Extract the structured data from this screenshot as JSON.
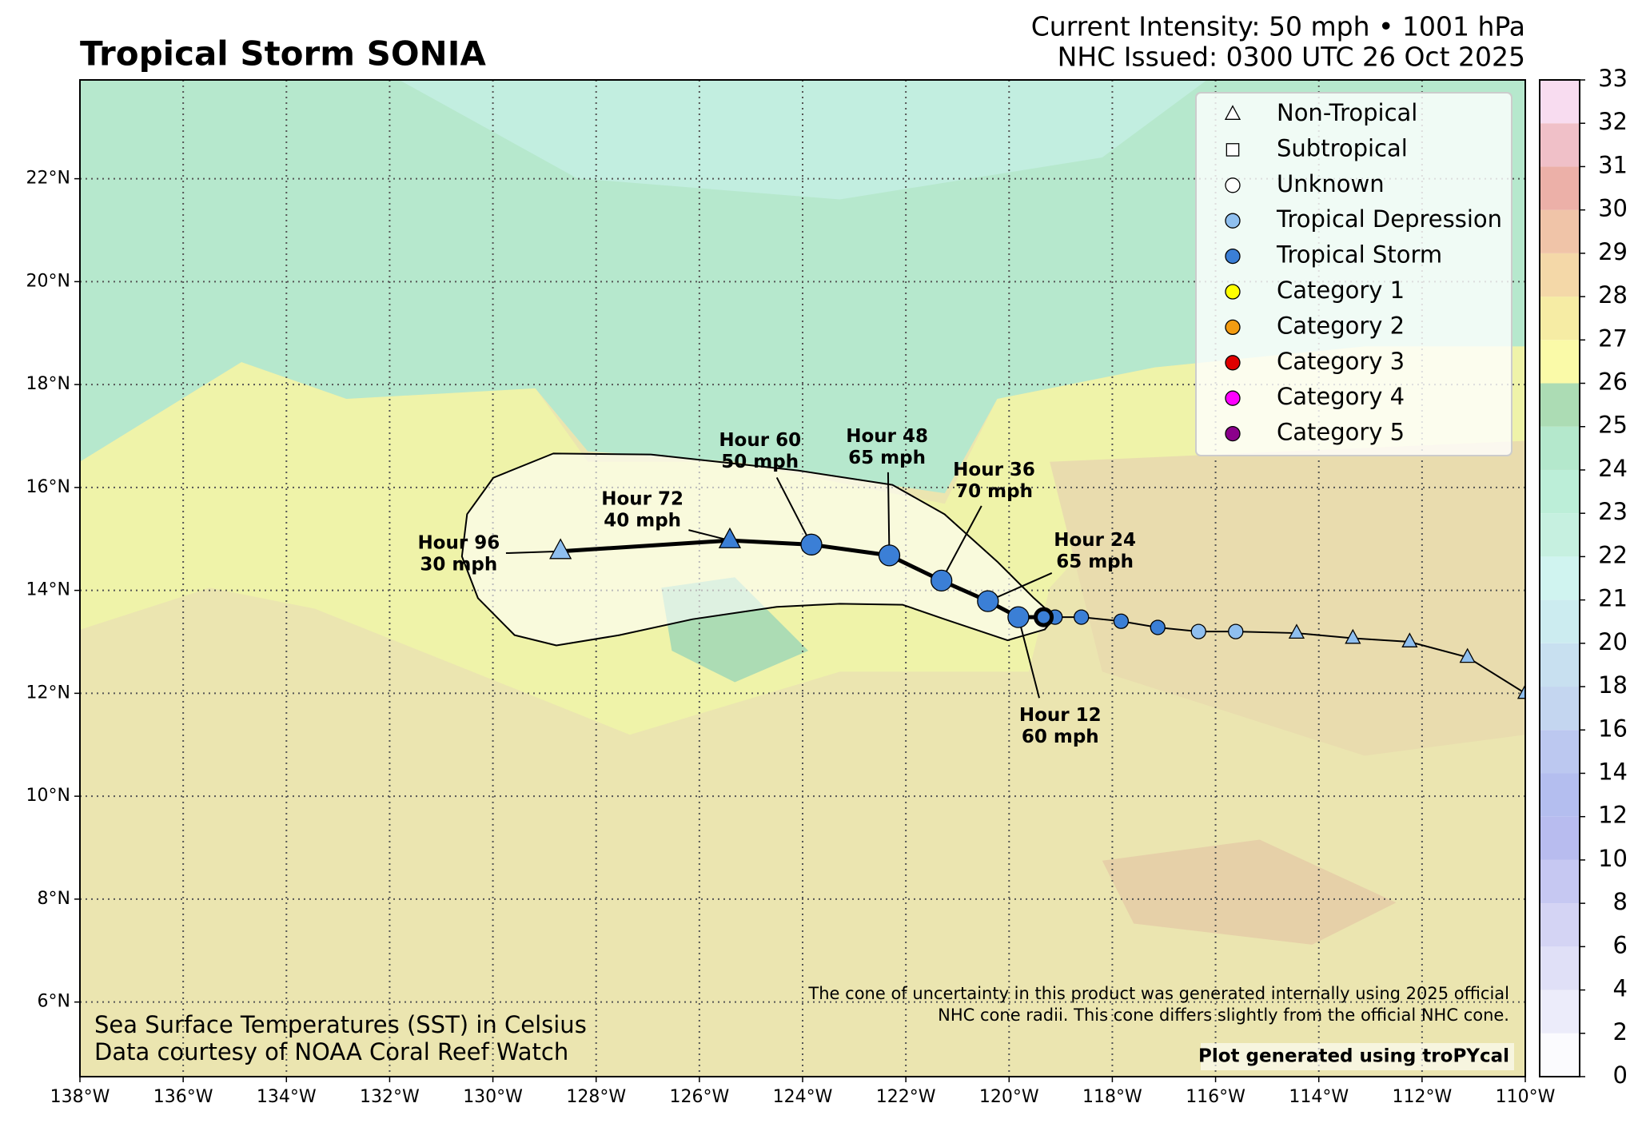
{
  "chart_data": {
    "type": "track-map",
    "title": "Tropical Storm SONIA",
    "subtitle": [
      "Current Intensity: 50 mph • 1001 hPa",
      "NHC Issued: 0300 UTC 26 Oct 2025"
    ],
    "xlim": [
      -138,
      -110
    ],
    "ylim": [
      4.55,
      23.92
    ],
    "xticks": [
      {
        "value": -138,
        "label": "138°W"
      },
      {
        "value": -136,
        "label": "136°W"
      },
      {
        "value": -134,
        "label": "134°W"
      },
      {
        "value": -132,
        "label": "132°W"
      },
      {
        "value": -130,
        "label": "130°W"
      },
      {
        "value": -128,
        "label": "128°W"
      },
      {
        "value": -126,
        "label": "126°W"
      },
      {
        "value": -124,
        "label": "124°W"
      },
      {
        "value": -122,
        "label": "122°W"
      },
      {
        "value": -120,
        "label": "120°W"
      },
      {
        "value": -118,
        "label": "118°W"
      },
      {
        "value": -116,
        "label": "116°W"
      },
      {
        "value": -114,
        "label": "114°W"
      },
      {
        "value": -112,
        "label": "112°W"
      },
      {
        "value": -110,
        "label": "110°W"
      }
    ],
    "yticks": [
      {
        "value": 6,
        "label": "6°N"
      },
      {
        "value": 8,
        "label": "8°N"
      },
      {
        "value": 10,
        "label": "10°N"
      },
      {
        "value": 12,
        "label": "12°N"
      },
      {
        "value": 14,
        "label": "14°N"
      },
      {
        "value": 16,
        "label": "16°N"
      },
      {
        "value": 18,
        "label": "18°N"
      },
      {
        "value": 20,
        "label": "20°N"
      },
      {
        "value": 22,
        "label": "22°N"
      }
    ],
    "grid": true,
    "past_track": {
      "x": [
        -110.0,
        -111.12,
        -112.24,
        -113.34,
        -114.43,
        -115.61,
        -116.33,
        -117.12,
        -117.83,
        -118.6,
        -119.11
      ],
      "y": [
        12.0,
        12.7,
        13.0,
        13.07,
        13.17,
        13.2,
        13.2,
        13.28,
        13.4,
        13.48,
        13.48
      ],
      "marker": [
        "triangle",
        "triangle",
        "triangle",
        "triangle",
        "triangle",
        "circle",
        "circle",
        "circle",
        "circle",
        "circle",
        "circle"
      ],
      "color": [
        "#8fbfef",
        "#8fbfef",
        "#8fbfef",
        "#8fbfef",
        "#8fbfef",
        "#8fbfef",
        "#8fbfef",
        "#3b7fd6",
        "#3b7fd6",
        "#3b7fd6",
        "#3b7fd6"
      ]
    },
    "forecast": {
      "hours": [
        null,
        "Hour 12",
        "Hour 24",
        "Hour 36",
        "Hour 48",
        "Hour 60",
        "Hour 72",
        "Hour 96"
      ],
      "intensity": [
        null,
        "60 mph",
        "65 mph",
        "70 mph",
        "65 mph",
        "50 mph",
        "40 mph",
        "30 mph"
      ],
      "x": [
        -119.33,
        -119.82,
        -120.41,
        -121.31,
        -122.32,
        -123.83,
        -125.41,
        -128.69
      ],
      "y": [
        13.48,
        13.48,
        13.79,
        14.19,
        14.68,
        14.89,
        14.97,
        14.76
      ],
      "marker": [
        "circle",
        "circle",
        "circle",
        "circle",
        "circle",
        "circle",
        "triangle",
        "triangle"
      ],
      "color": [
        "#3b7fd6",
        "#3b7fd6",
        "#3b7fd6",
        "#3b7fd6",
        "#3b7fd6",
        "#3b7fd6",
        "#3b7fd6",
        "#8fbfef"
      ]
    },
    "cone": {
      "x": [
        -128.83,
        -126.94,
        -124.09,
        -122.26,
        -121.25,
        -120.23,
        -119.52,
        -119.11,
        -119.31,
        -120.03,
        -121.25,
        -122.06,
        -123.28,
        -124.5,
        -126.13,
        -127.55,
        -128.77,
        -129.58,
        -130.29,
        -130.6,
        -130.5,
        -129.99
      ],
      "y": [
        16.66,
        16.64,
        16.33,
        16.05,
        15.48,
        14.56,
        13.85,
        13.48,
        13.24,
        13.03,
        13.44,
        13.72,
        13.74,
        13.68,
        13.44,
        13.13,
        12.93,
        13.13,
        13.85,
        14.66,
        15.48,
        16.19
      ]
    },
    "legend": [
      {
        "name": "Non-Tropical",
        "marker": "triangle",
        "color": "#ffffff"
      },
      {
        "name": "Subtropical",
        "marker": "square",
        "color": "#ffffff"
      },
      {
        "name": "Unknown",
        "marker": "circle",
        "color": "#ffffff"
      },
      {
        "name": "Tropical Depression",
        "marker": "circle",
        "color": "#8fbfef"
      },
      {
        "name": "Tropical Storm",
        "marker": "circle",
        "color": "#3b7fd6"
      },
      {
        "name": "Category 1",
        "marker": "circle",
        "color": "#ffff00"
      },
      {
        "name": "Category 2",
        "marker": "circle",
        "color": "#f39c12"
      },
      {
        "name": "Category 3",
        "marker": "circle",
        "color": "#e00000"
      },
      {
        "name": "Category 4",
        "marker": "circle",
        "color": "#ff00ff"
      },
      {
        "name": "Category 5",
        "marker": "circle",
        "color": "#8b008b"
      }
    ],
    "colorbar": {
      "ticks": [
        0,
        2,
        4,
        6,
        8,
        10,
        12,
        14,
        16,
        18,
        20,
        21,
        22,
        23,
        24,
        25,
        26,
        27,
        28,
        29,
        30,
        31,
        32,
        33
      ],
      "colors": [
        "#fbfbfe",
        "#ececfa",
        "#e0e0f7",
        "#d4d4f4",
        "#c6c8f2",
        "#b8bcef",
        "#b4beef",
        "#bcc8f0",
        "#c4d6f0",
        "#c8e0f0",
        "#ccecf0",
        "#d0f4f0",
        "#c6f0e0",
        "#bceed8",
        "#b4e8cc",
        "#acdcb4",
        "#fafaa8",
        "#f6eca4",
        "#f4d8a8",
        "#f0c4a8",
        "#ecb0a8",
        "#f0c0c8",
        "#f8dcf0"
      ]
    },
    "sst_note": [
      "Sea Surface Temperatures (SST) in Celsius",
      "Data courtesy of NOAA Coral Reef Watch"
    ],
    "cone_note": [
      "The cone of uncertainty in this product was generated internally using 2025 official",
      "NHC cone radii. This cone differs slightly from the official NHC cone."
    ],
    "credit": "Plot generated using troPYcal"
  }
}
